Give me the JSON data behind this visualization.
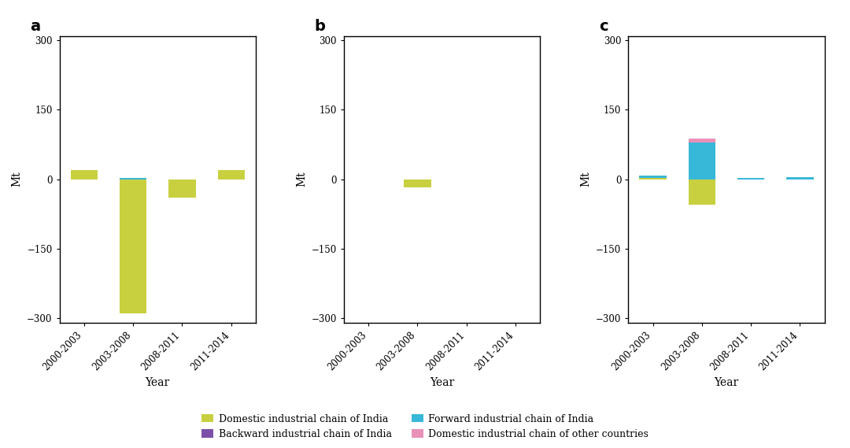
{
  "categories": [
    "2000-2003",
    "2003-2008",
    "2008-2011",
    "2011-2014"
  ],
  "panel_a": {
    "domestic_india": [
      20,
      -290,
      -40,
      20
    ],
    "forward_india": [
      0,
      2,
      0,
      0
    ],
    "backward_india": [
      0,
      0,
      0,
      0
    ],
    "domestic_other": [
      0,
      0,
      0,
      0
    ]
  },
  "panel_b": {
    "domestic_india": [
      0,
      -18,
      -1,
      -1
    ],
    "forward_india": [
      0,
      0,
      0,
      0
    ],
    "backward_india": [
      0,
      0,
      0,
      0
    ],
    "domestic_other": [
      0,
      0,
      0,
      0
    ]
  },
  "panel_c": {
    "domestic_india": [
      2,
      -55,
      -1,
      -1
    ],
    "forward_india": [
      5,
      80,
      3,
      5
    ],
    "backward_india": [
      0,
      0,
      0,
      0
    ],
    "domestic_other": [
      0,
      8,
      0,
      0
    ]
  },
  "colors": {
    "domestic_india": "#c8d040",
    "forward_india": "#38b8d8",
    "backward_india": "#7c50a8",
    "domestic_other": "#e890b8"
  },
  "ylim": [
    -310,
    310
  ],
  "yticks": [
    -300,
    -150,
    0,
    150,
    300
  ],
  "ylabel": "Mt",
  "xlabel": "Year",
  "panel_labels": [
    "a",
    "b",
    "c"
  ],
  "legend_entries": [
    {
      "label": "Domestic industrial chain of India",
      "color": "#c8d040"
    },
    {
      "label": "Backward industrial chain of India",
      "color": "#7c50a8"
    },
    {
      "label": "Forward industrial chain of India",
      "color": "#38b8d8"
    },
    {
      "label": "Domestic industrial chain of other countries",
      "color": "#e890b8"
    }
  ],
  "fig_width": 10.8,
  "fig_height": 5.69,
  "bar_width": 0.55
}
